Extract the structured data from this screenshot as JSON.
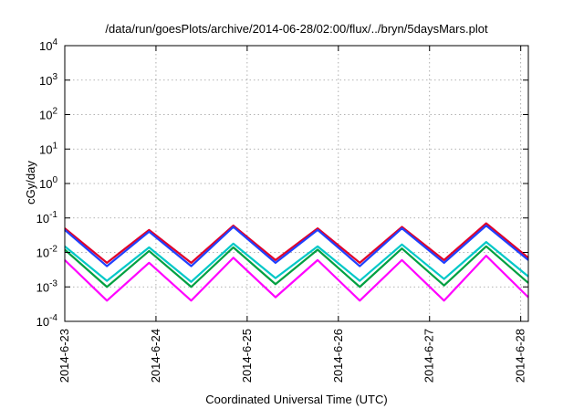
{
  "chart_data": {
    "type": "line",
    "title": "/data/run/goesPlots/archive/2014-06-28/02:00/flux/../bryn/5daysMars.plot",
    "xlabel": "Coordinated Universal Time (UTC)",
    "ylabel": "cGy/day",
    "yscale": "log",
    "ylim": [
      0.0001,
      10000
    ],
    "y_ticks": [
      {
        "value": 0.0001,
        "base": "10",
        "exp": "-4"
      },
      {
        "value": 0.001,
        "base": "10",
        "exp": "-3"
      },
      {
        "value": 0.01,
        "base": "10",
        "exp": "-2"
      },
      {
        "value": 0.1,
        "base": "10",
        "exp": "-1"
      },
      {
        "value": 1,
        "base": "10",
        "exp": "0"
      },
      {
        "value": 10,
        "base": "10",
        "exp": "1"
      },
      {
        "value": 100,
        "base": "10",
        "exp": "2"
      },
      {
        "value": 1000,
        "base": "10",
        "exp": "3"
      },
      {
        "value": 10000,
        "base": "10",
        "exp": "4"
      }
    ],
    "xlim": [
      "2014-06-23T00:00",
      "2014-06-28T02:00"
    ],
    "x_ticks": [
      {
        "value": "2014-06-23T00:00",
        "label": "2014-6-23"
      },
      {
        "value": "2014-06-24T00:00",
        "label": "2014-6-24"
      },
      {
        "value": "2014-06-25T00:00",
        "label": "2014-6-25"
      },
      {
        "value": "2014-06-26T00:00",
        "label": "2014-6-26"
      },
      {
        "value": "2014-06-27T00:00",
        "label": "2014-6-27"
      },
      {
        "value": "2014-06-28T00:00",
        "label": "2014-6-28"
      }
    ],
    "grid": true,
    "legend": "none",
    "series": [
      {
        "color": "#e0002a",
        "y": [
          0.05,
          0.005,
          0.045,
          0.005,
          0.06,
          0.006,
          0.05,
          0.005,
          0.055,
          0.006,
          0.07,
          0.007
        ]
      },
      {
        "color": "#2040ff",
        "y": [
          0.045,
          0.004,
          0.04,
          0.004,
          0.055,
          0.005,
          0.045,
          0.004,
          0.05,
          0.005,
          0.06,
          0.006
        ]
      },
      {
        "color": "#00c8c8",
        "y": [
          0.015,
          0.0015,
          0.014,
          0.0014,
          0.018,
          0.0018,
          0.015,
          0.0015,
          0.017,
          0.0017,
          0.02,
          0.002
        ]
      },
      {
        "color": "#00a040",
        "y": [
          0.012,
          0.001,
          0.011,
          0.001,
          0.014,
          0.0012,
          0.012,
          0.001,
          0.013,
          0.0011,
          0.015,
          0.0013
        ]
      },
      {
        "color": "#ff00ff",
        "y": [
          0.006,
          0.0004,
          0.005,
          0.0004,
          0.007,
          0.0005,
          0.006,
          0.0004,
          0.006,
          0.0004,
          0.008,
          0.0005
        ]
      }
    ]
  }
}
